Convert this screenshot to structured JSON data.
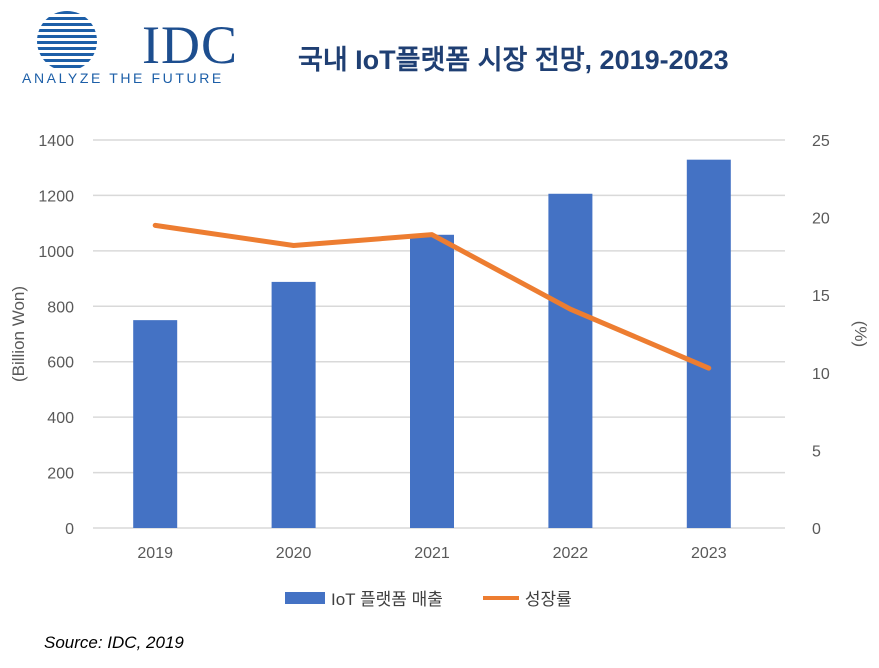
{
  "logo": {
    "name": "IDC",
    "tagline": "ANALYZE THE FUTURE"
  },
  "title": "국내 IoT플랫폼 시장 전망, 2019-2023",
  "source": "Source: IDC, 2019",
  "chart_data": {
    "type": "bar+line",
    "title": "국내 IoT플랫폼 시장 전망, 2019-2023",
    "categories": [
      "2019",
      "2020",
      "2021",
      "2022",
      "2023"
    ],
    "ylabel": "(Billion Won)",
    "y2label": "(%)",
    "ylim": [
      0,
      1400
    ],
    "y2lim": [
      0,
      25
    ],
    "yticks": [
      "0",
      "200",
      "400",
      "600",
      "800",
      "1000",
      "1200",
      "1400"
    ],
    "y2ticks": [
      "0",
      "5",
      "10",
      "15",
      "20",
      "25"
    ],
    "grid": true,
    "legend": "bottom",
    "series": [
      {
        "name": "IoT 플랫폼 매출",
        "type": "bar",
        "axis": "left",
        "color": "#4472c4",
        "values": [
          750,
          888,
          1058,
          1206,
          1329
        ]
      },
      {
        "name": "성장률",
        "type": "line",
        "axis": "right",
        "color": "#ed7d31",
        "values": [
          19.5,
          18.2,
          18.9,
          14.1,
          10.3
        ]
      }
    ]
  }
}
